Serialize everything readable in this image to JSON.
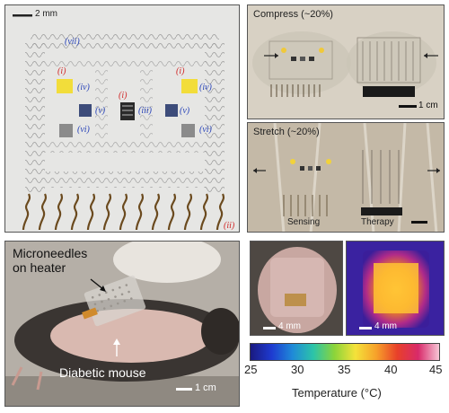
{
  "panel_a": {
    "scale_label": "2 mm",
    "labels": {
      "vii": "(vii)",
      "i_left": "(i)",
      "i_right": "(i)",
      "i_center": "(i)",
      "iv_left": "(iv)",
      "iv_right": "(iv)",
      "iii": "(iii)",
      "v_left": "(v)",
      "v_right": "(v)",
      "vi_left": "(vi)",
      "vi_right": "(vi)",
      "ii": "(ii)"
    }
  },
  "panel_compress": {
    "title": "Compress (~20%)",
    "scale_label": "1 cm"
  },
  "panel_stretch": {
    "title": "Stretch (~20%)",
    "label_sensing": "Sensing",
    "label_therapy": "Therapy"
  },
  "panel_mouse": {
    "label_microneedles": "Microneedles\non heater",
    "label_mouse": "Diabetic mouse",
    "scale_label": "1 cm"
  },
  "panel_skin": {
    "scale_label": "4 mm"
  },
  "panel_thermal": {
    "scale_label": "4 mm"
  },
  "colorbar": {
    "ticks": [
      "25",
      "30",
      "35",
      "40",
      "45"
    ],
    "label": "Temperature (°C)"
  }
}
